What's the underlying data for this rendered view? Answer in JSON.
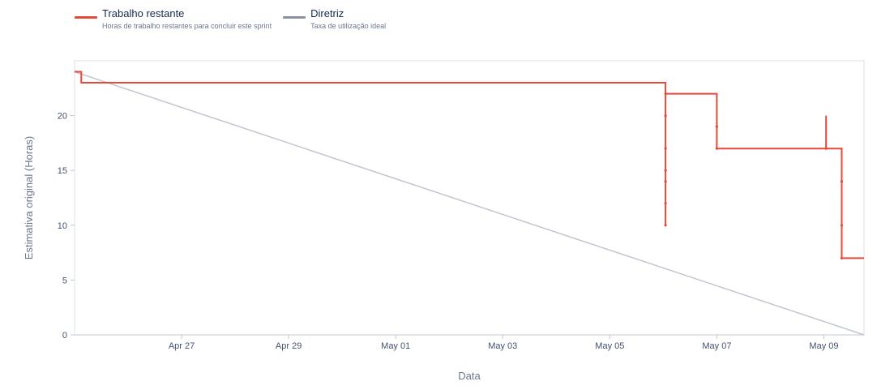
{
  "legend": [
    {
      "name": "Trabalho restante",
      "description": "Horas de trabalho restantes para concluir este sprint",
      "color": "#e5493a"
    },
    {
      "name": "Diretriz",
      "description": "Taxa de utilização ideal",
      "color": "#8993a4"
    }
  ],
  "chart_data": {
    "type": "line",
    "xlabel": "Data",
    "ylabel": "Estimativa original (Horas)",
    "x_ticks": [
      "Apr 27",
      "Apr 29",
      "May 01",
      "May 03",
      "May 05",
      "May 07",
      "May 09"
    ],
    "y_ticks": [
      0,
      5,
      10,
      15,
      20
    ],
    "xlim": [
      "Apr 25 12:00",
      "May 10 06:00"
    ],
    "ylim": [
      0,
      25
    ],
    "grid": false,
    "legend_position": "top-left",
    "series": [
      {
        "name": "Trabalho restante",
        "color": "#e5493a",
        "points": [
          {
            "x": "Apr 25 12:00",
            "y": 24
          },
          {
            "x": "Apr 25 15:00",
            "y": 24
          },
          {
            "x": "Apr 25 15:00",
            "y": 23
          },
          {
            "x": "May 06 13:00",
            "y": 23
          },
          {
            "x": "May 06 13:00",
            "y": 10
          },
          {
            "x": "May 06 13:00",
            "y": 22
          },
          {
            "x": "May 07 12:00",
            "y": 22
          },
          {
            "x": "May 07 12:00",
            "y": 17
          },
          {
            "x": "May 09 13:00",
            "y": 17
          },
          {
            "x": "May 09 13:00",
            "y": 20
          },
          {
            "x": "May 09 13:00",
            "y": 17
          },
          {
            "x": "May 09 20:00",
            "y": 17
          },
          {
            "x": "May 09 20:00",
            "y": 7
          },
          {
            "x": "May 10 06:00",
            "y": 7
          }
        ],
        "markers": [
          {
            "x": "May 06 13:00",
            "y": 22
          },
          {
            "x": "May 06 13:00",
            "y": 20
          },
          {
            "x": "May 06 13:00",
            "y": 17
          },
          {
            "x": "May 06 13:00",
            "y": 15
          },
          {
            "x": "May 06 13:00",
            "y": 14
          },
          {
            "x": "May 06 13:00",
            "y": 12
          },
          {
            "x": "May 06 13:00",
            "y": 10
          },
          {
            "x": "May 07 12:00",
            "y": 19
          },
          {
            "x": "May 07 12:00",
            "y": 17
          },
          {
            "x": "May 09 13:00",
            "y": 17
          },
          {
            "x": "May 09 20:00",
            "y": 14
          },
          {
            "x": "May 09 20:00",
            "y": 10
          },
          {
            "x": "May 09 20:00",
            "y": 7
          }
        ]
      },
      {
        "name": "Diretriz",
        "color": "#c1c7d0",
        "points": [
          {
            "x": "Apr 25 12:00",
            "y": 24
          },
          {
            "x": "May 10 06:00",
            "y": 0
          }
        ]
      }
    ]
  }
}
